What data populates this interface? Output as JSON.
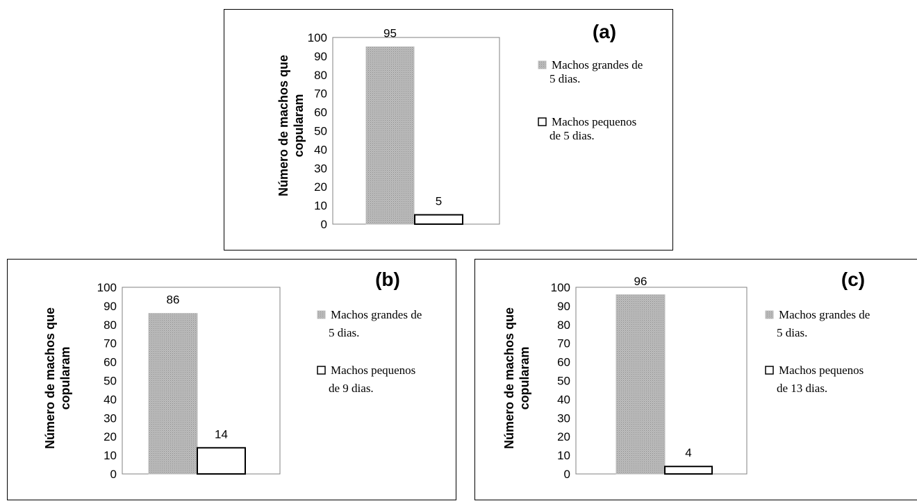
{
  "chart_data": [
    {
      "type": "bar",
      "panel_label": "(a)",
      "ylabel_line1": "Número de machos que",
      "ylabel_line2": "copularam",
      "ylim": [
        0,
        100
      ],
      "yticks": [
        "0",
        "10",
        "20",
        "30",
        "40",
        "50",
        "60",
        "70",
        "80",
        "90",
        "100"
      ],
      "grid": false,
      "legend_position": "right",
      "series": [
        {
          "name": "Machos grandes de 5 dias.",
          "legend_lines": [
            "Machos grandes de",
            "5 dias."
          ],
          "value": 95,
          "label": "95",
          "color": "#b3b3b3",
          "pattern": "dotted-gray"
        },
        {
          "name": "Machos pequenos de 5 dias.",
          "legend_lines": [
            "Machos pequenos",
            "de 5 dias."
          ],
          "value": 5,
          "label": "5",
          "color": "#ffffff",
          "pattern": "none"
        }
      ]
    },
    {
      "type": "bar",
      "panel_label": "(b)",
      "ylabel_line1": "Número de machos que",
      "ylabel_line2": "copularam",
      "ylim": [
        0,
        100
      ],
      "yticks": [
        "0",
        "10",
        "20",
        "30",
        "40",
        "50",
        "60",
        "70",
        "80",
        "90",
        "100"
      ],
      "grid": false,
      "legend_position": "right",
      "series": [
        {
          "name": "Machos grandes de 5 dias.",
          "legend_lines": [
            "Machos grandes de",
            "5 dias."
          ],
          "value": 86,
          "label": "86",
          "color": "#b3b3b3",
          "pattern": "dotted-gray"
        },
        {
          "name": "Machos pequenos de 9 dias.",
          "legend_lines": [
            "Machos pequenos",
            "de 9 dias."
          ],
          "value": 14,
          "label": "14",
          "color": "#ffffff",
          "pattern": "none"
        }
      ]
    },
    {
      "type": "bar",
      "panel_label": "(c)",
      "ylabel_line1": "Número de machos que",
      "ylabel_line2": "copularam",
      "ylim": [
        0,
        100
      ],
      "yticks": [
        "0",
        "10",
        "20",
        "30",
        "40",
        "50",
        "60",
        "70",
        "80",
        "90",
        "100"
      ],
      "grid": false,
      "legend_position": "right",
      "series": [
        {
          "name": "Machos grandes de 5 dias.",
          "legend_lines": [
            "Machos grandes de",
            "5 dias."
          ],
          "value": 96,
          "label": "96",
          "color": "#b3b3b3",
          "pattern": "dotted-gray"
        },
        {
          "name": "Machos pequenos de 13 dias.",
          "legend_lines": [
            "Machos pequenos",
            "de 13 dias."
          ],
          "value": 4,
          "label": "4",
          "color": "#ffffff",
          "pattern": "none"
        }
      ]
    }
  ]
}
